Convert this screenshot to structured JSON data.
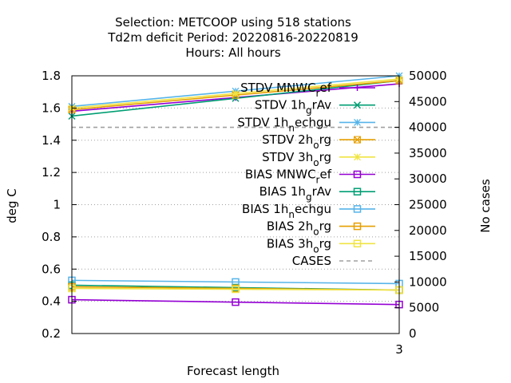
{
  "chart_data": {
    "type": "line",
    "title": [
      "Selection: METCOOP using   518 stations",
      "Td2m deficit   Period: 20220816-20220819",
      "Hours:  All hours"
    ],
    "xlabel": "Forecast length",
    "ylabel": "deg C",
    "y2label": "No cases",
    "x": [
      0,
      3
    ],
    "xticks": [
      "3"
    ],
    "xlim": [
      0,
      3
    ],
    "ylim": [
      0.2,
      1.8
    ],
    "yticks": [
      "0.2",
      "0.4",
      "0.6",
      "0.8",
      "1",
      "1.2",
      "1.4",
      "1.6",
      "1.8"
    ],
    "y2lim": [
      0,
      50000
    ],
    "y2ticks": [
      "0",
      "5000",
      "10000",
      "15000",
      "20000",
      "25000",
      "30000",
      "35000",
      "40000",
      "45000",
      "50000"
    ],
    "grid": true,
    "legend_position": "top-right",
    "series": [
      {
        "name": "STDV MNWC_ref",
        "legend": [
          "STDV MNWC",
          "r",
          "ef"
        ],
        "axis": "y",
        "marker": "plus",
        "color": "#9400d3",
        "values": [
          1.58,
          1.75
        ]
      },
      {
        "name": "STDV 1h_gRAv",
        "legend": [
          "STDV 1h",
          "g",
          "rAv"
        ],
        "axis": "y",
        "marker": "x",
        "color": "#009e73",
        "values": [
          1.55,
          1.77
        ]
      },
      {
        "name": "STDV 1h_nechgu",
        "legend": [
          "STDV 1h",
          "n",
          "echgu"
        ],
        "axis": "y",
        "marker": "star",
        "color": "#56b4e9",
        "values": [
          1.61,
          1.8
        ]
      },
      {
        "name": "STDV 2h_org",
        "legend": [
          "STDV 2h",
          "o",
          "rg"
        ],
        "axis": "y",
        "marker": "box",
        "color": "#e69f00",
        "values": [
          1.59,
          1.77
        ]
      },
      {
        "name": "STDV 3h_org",
        "legend": [
          "STDV 3h",
          "o",
          "rg"
        ],
        "axis": "y",
        "marker": "boxfill",
        "color": "#f0e442",
        "values": [
          1.6,
          1.78
        ]
      },
      {
        "name": "BIAS MNWC_ref",
        "legend": [
          "BIAS MNWC",
          "r",
          "ef"
        ],
        "axis": "y",
        "marker": "square",
        "color": "#9400d3",
        "values": [
          0.41,
          0.38
        ]
      },
      {
        "name": "BIAS 1h_gRAv",
        "legend": [
          "BIAS 1h",
          "g",
          "rAv"
        ],
        "axis": "y",
        "marker": "square",
        "color": "#009e73",
        "values": [
          0.5,
          0.47
        ]
      },
      {
        "name": "BIAS 1h_nechgu",
        "legend": [
          "BIAS 1h",
          "n",
          "echgu"
        ],
        "axis": "y",
        "marker": "square",
        "color": "#56b4e9",
        "values": [
          0.53,
          0.51
        ]
      },
      {
        "name": "BIAS 2h_org",
        "legend": [
          "BIAS 2h",
          "o",
          "rg"
        ],
        "axis": "y",
        "marker": "square",
        "color": "#e69f00",
        "values": [
          0.49,
          0.47
        ]
      },
      {
        "name": "BIAS 3h_org",
        "legend": [
          "BIAS 3h",
          "o",
          "rg"
        ],
        "axis": "y",
        "marker": "square",
        "color": "#f0e442",
        "values": [
          0.48,
          0.47
        ]
      },
      {
        "name": "CASES",
        "legend": [
          "CASES"
        ],
        "axis": "y2",
        "marker": "none",
        "dash": true,
        "color": "#a0a0a0",
        "values": [
          40000,
          40000
        ]
      }
    ]
  }
}
